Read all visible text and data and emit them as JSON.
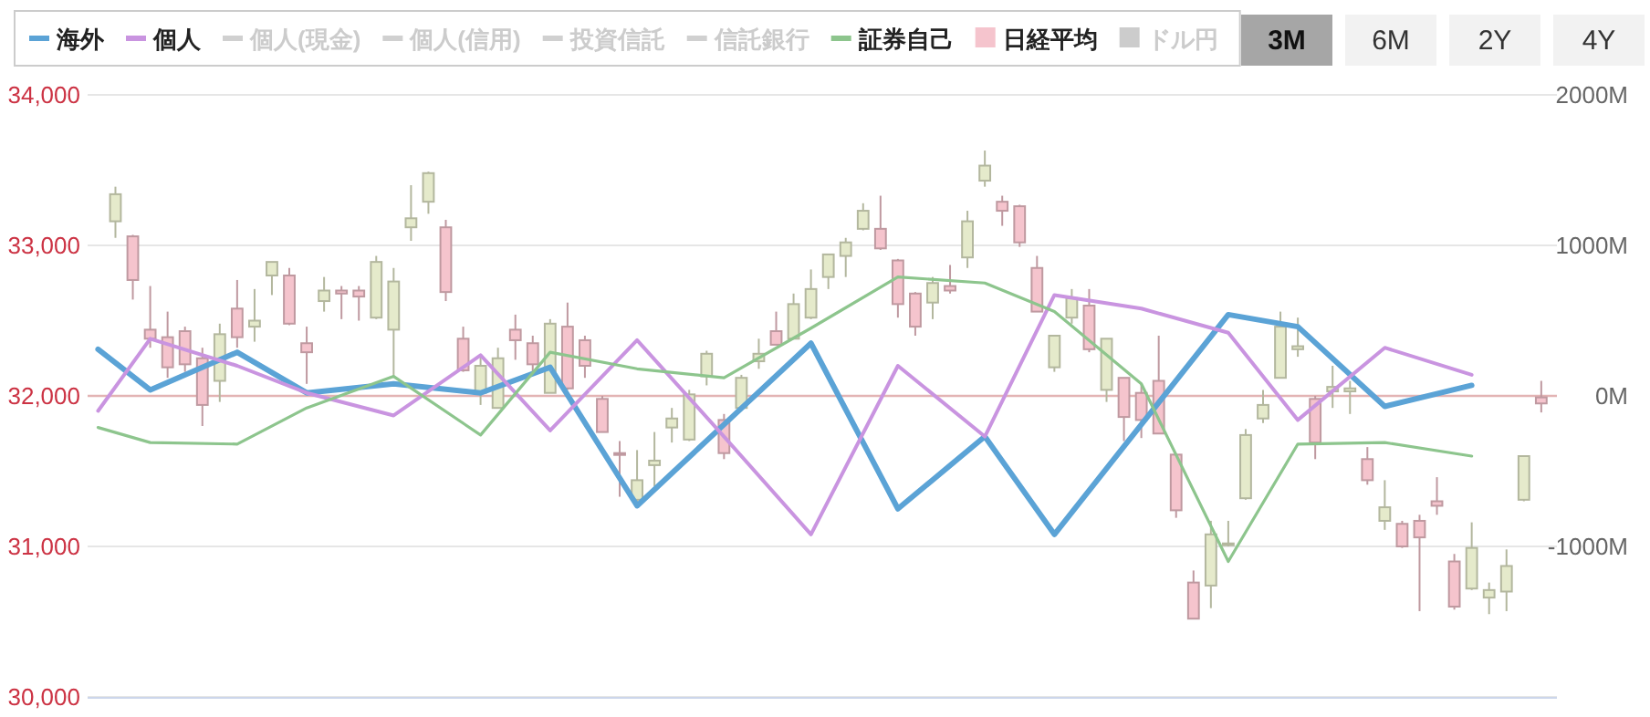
{
  "chart_data": {
    "type": "candlestick",
    "categories": [
      null,
      null,
      null,
      null,
      null,
      null,
      null,
      null,
      null,
      null,
      null,
      null,
      null,
      null,
      null,
      null,
      null,
      null,
      null,
      null,
      null,
      null,
      null,
      null,
      null,
      null,
      null,
      null,
      null,
      null,
      null,
      null,
      null,
      null,
      null,
      null,
      null,
      null,
      null,
      null,
      null,
      null,
      null,
      null,
      null,
      null,
      null,
      null,
      null,
      null,
      null,
      null,
      null,
      null,
      null,
      null,
      null,
      null,
      null,
      null,
      null,
      null,
      null,
      null,
      null,
      null,
      null,
      null,
      null,
      null,
      null,
      null,
      null,
      null,
      null,
      null,
      null,
      null,
      null,
      null,
      null,
      null,
      null,
      null
    ],
    "ylim": [
      30000,
      34000
    ],
    "yticks": [
      {
        "value": 30000,
        "label": "30,000"
      },
      {
        "value": 31000,
        "label": "31,000"
      },
      {
        "value": 32000,
        "label": "32,000"
      },
      {
        "value": 33000,
        "label": "33,000"
      },
      {
        "value": 34000,
        "label": "34,000"
      }
    ],
    "y2lim": [
      -2000,
      2000
    ],
    "y2ticks": [
      {
        "value": -1000,
        "label": "-1000M"
      },
      {
        "value": 0,
        "label": "0M"
      },
      {
        "value": 1000,
        "label": "1000M"
      },
      {
        "value": 2000,
        "label": "2000M"
      }
    ],
    "grid": "y",
    "legend": "top",
    "tick_labels": "y",
    "ref_lines": [
      {
        "axis": "y2",
        "value": 0,
        "color": "#e3b4b4"
      }
    ],
    "annotations": [
      "3M",
      "6M",
      "2Y",
      "4Y"
    ],
    "series": [
      {
        "name": "海外",
        "type": "line",
        "axis": "y2",
        "color": "#5ba3d6",
        "values": [
          310,
          null,
          null,
          40,
          null,
          null,
          null,
          null,
          290,
          null,
          null,
          null,
          20,
          null,
          null,
          null,
          null,
          80,
          null,
          null,
          null,
          null,
          20,
          null,
          null,
          null,
          190,
          null,
          null,
          null,
          null,
          -730,
          null,
          null,
          null,
          null,
          -190,
          null,
          null,
          null,
          null,
          350,
          null,
          null,
          null,
          null,
          -750,
          null,
          null,
          null,
          null,
          -270,
          null,
          null,
          null,
          -920,
          null,
          null,
          null,
          null,
          -190,
          null,
          null,
          null,
          null,
          540,
          null,
          null,
          null,
          460,
          null,
          null,
          null,
          null,
          -70,
          null,
          null,
          null,
          null,
          70,
          null,
          null,
          null,
          null
        ]
      },
      {
        "name": "個人",
        "type": "line",
        "axis": "y2",
        "color": "#c994e0",
        "values": [
          -100,
          null,
          null,
          380,
          null,
          null,
          null,
          null,
          200,
          null,
          null,
          null,
          20,
          null,
          null,
          null,
          null,
          -130,
          null,
          null,
          null,
          null,
          270,
          null,
          null,
          null,
          -230,
          null,
          null,
          null,
          null,
          370,
          null,
          null,
          null,
          null,
          -270,
          null,
          null,
          null,
          null,
          -920,
          null,
          null,
          null,
          null,
          200,
          null,
          null,
          null,
          null,
          -270,
          null,
          null,
          null,
          670,
          null,
          null,
          null,
          null,
          580,
          null,
          null,
          null,
          null,
          420,
          null,
          null,
          null,
          -160,
          null,
          null,
          null,
          null,
          320,
          null,
          null,
          null,
          null,
          140,
          null,
          null,
          null,
          null
        ]
      },
      {
        "name": "個人(現金)",
        "type": "line",
        "axis": "y2",
        "color": "#d0d0d0",
        "values": [
          null,
          null,
          null,
          null,
          null,
          null,
          null,
          null,
          null,
          null,
          null,
          null,
          null,
          null,
          null,
          null,
          null,
          null,
          null,
          null,
          null,
          null,
          null,
          null,
          null,
          null,
          null,
          null,
          null,
          null,
          null,
          null,
          null,
          null,
          null,
          null,
          null,
          null,
          null,
          null,
          null,
          null,
          null,
          null,
          null,
          null,
          null,
          null,
          null,
          null,
          null,
          null,
          null,
          null,
          null,
          null,
          null,
          null,
          null,
          null,
          null,
          null,
          null,
          null,
          null,
          null,
          null,
          null,
          null,
          null,
          null,
          null,
          null,
          null,
          null,
          null,
          null,
          null,
          null,
          null,
          null,
          null,
          null,
          null
        ]
      },
      {
        "name": "個人(信用)",
        "type": "line",
        "axis": "y2",
        "color": "#d0d0d0",
        "values": [
          null,
          null,
          null,
          null,
          null,
          null,
          null,
          null,
          null,
          null,
          null,
          null,
          null,
          null,
          null,
          null,
          null,
          null,
          null,
          null,
          null,
          null,
          null,
          null,
          null,
          null,
          null,
          null,
          null,
          null,
          null,
          null,
          null,
          null,
          null,
          null,
          null,
          null,
          null,
          null,
          null,
          null,
          null,
          null,
          null,
          null,
          null,
          null,
          null,
          null,
          null,
          null,
          null,
          null,
          null,
          null,
          null,
          null,
          null,
          null,
          null,
          null,
          null,
          null,
          null,
          null,
          null,
          null,
          null,
          null,
          null,
          null,
          null,
          null,
          null,
          null,
          null,
          null,
          null,
          null,
          null,
          null,
          null,
          null
        ]
      },
      {
        "name": "投資信託",
        "type": "line",
        "axis": "y2",
        "color": "#d0d0d0",
        "values": [
          null,
          null,
          null,
          null,
          null,
          null,
          null,
          null,
          null,
          null,
          null,
          null,
          null,
          null,
          null,
          null,
          null,
          null,
          null,
          null,
          null,
          null,
          null,
          null,
          null,
          null,
          null,
          null,
          null,
          null,
          null,
          null,
          null,
          null,
          null,
          null,
          null,
          null,
          null,
          null,
          null,
          null,
          null,
          null,
          null,
          null,
          null,
          null,
          null,
          null,
          null,
          null,
          null,
          null,
          null,
          null,
          null,
          null,
          null,
          null,
          null,
          null,
          null,
          null,
          null,
          null,
          null,
          null,
          null,
          null,
          null,
          null,
          null,
          null,
          null,
          null,
          null,
          null,
          null,
          null,
          null,
          null,
          null,
          null
        ]
      },
      {
        "name": "信託銀行",
        "type": "line",
        "axis": "y2",
        "color": "#d0d0d0",
        "values": [
          null,
          null,
          null,
          null,
          null,
          null,
          null,
          null,
          null,
          null,
          null,
          null,
          null,
          null,
          null,
          null,
          null,
          null,
          null,
          null,
          null,
          null,
          null,
          null,
          null,
          null,
          null,
          null,
          null,
          null,
          null,
          null,
          null,
          null,
          null,
          null,
          null,
          null,
          null,
          null,
          null,
          null,
          null,
          null,
          null,
          null,
          null,
          null,
          null,
          null,
          null,
          null,
          null,
          null,
          null,
          null,
          null,
          null,
          null,
          null,
          null,
          null,
          null,
          null,
          null,
          null,
          null,
          null,
          null,
          null,
          null,
          null,
          null,
          null,
          null,
          null,
          null,
          null,
          null,
          null,
          null,
          null,
          null,
          null
        ]
      },
      {
        "name": "証券自己",
        "type": "line",
        "axis": "y2",
        "color": "#8dc58d",
        "values": [
          -210,
          null,
          null,
          -310,
          null,
          null,
          null,
          null,
          -320,
          null,
          null,
          null,
          -80,
          null,
          null,
          null,
          null,
          130,
          null,
          null,
          null,
          null,
          -260,
          null,
          null,
          null,
          290,
          null,
          null,
          null,
          null,
          180,
          null,
          null,
          null,
          null,
          120,
          null,
          null,
          null,
          null,
          450,
          null,
          null,
          null,
          null,
          790,
          null,
          null,
          null,
          null,
          750,
          null,
          null,
          null,
          560,
          null,
          null,
          null,
          null,
          80,
          null,
          null,
          null,
          null,
          -1100,
          null,
          null,
          null,
          -320,
          null,
          null,
          null,
          null,
          -310,
          null,
          null,
          null,
          null,
          -400,
          null,
          null,
          null,
          null
        ]
      },
      {
        "name": "日経平均",
        "type": "candlestick",
        "color": "#f5c4cd",
        "ohlc": [
          null,
          [
            33160,
            33390,
            33050,
            33340
          ],
          [
            33060,
            33070,
            32640,
            32770
          ],
          [
            32440,
            32730,
            32320,
            32380
          ],
          [
            32390,
            32560,
            32120,
            32190
          ],
          [
            32430,
            32460,
            32160,
            32210
          ],
          [
            32250,
            32320,
            31800,
            31940
          ],
          [
            32100,
            32480,
            31960,
            32410
          ],
          [
            32580,
            32770,
            32320,
            32390
          ],
          [
            32460,
            32710,
            32360,
            32500
          ],
          [
            32800,
            32890,
            32670,
            32890
          ],
          [
            32800,
            32850,
            32470,
            32480
          ],
          [
            32350,
            32460,
            32080,
            32290
          ],
          [
            32630,
            32790,
            32560,
            32700
          ],
          [
            32700,
            32730,
            32510,
            32680
          ],
          [
            32700,
            32730,
            32500,
            32660
          ],
          [
            32520,
            32930,
            32510,
            32890
          ],
          [
            32440,
            32850,
            32120,
            32760
          ],
          [
            33120,
            33400,
            33030,
            33180
          ],
          [
            33290,
            33490,
            33210,
            33480
          ],
          [
            33120,
            33170,
            32630,
            32690
          ],
          [
            32380,
            32460,
            32160,
            32170
          ],
          [
            32020,
            32260,
            31940,
            32200
          ],
          [
            31920,
            32320,
            31920,
            32250
          ],
          [
            32440,
            32540,
            32240,
            32370
          ],
          [
            32350,
            32400,
            32160,
            32210
          ],
          [
            32020,
            32510,
            32020,
            32480
          ],
          [
            32460,
            32620,
            32040,
            32050
          ],
          [
            32370,
            32400,
            32120,
            32200
          ],
          [
            31980,
            32000,
            31760,
            31760
          ],
          [
            31620,
            31700,
            31330,
            31610
          ],
          [
            31310,
            31640,
            31290,
            31440
          ],
          [
            31540,
            31760,
            31400,
            31570
          ],
          [
            31790,
            31920,
            31690,
            31850
          ],
          [
            31710,
            32040,
            31700,
            32010
          ],
          [
            32130,
            32300,
            32070,
            32280
          ],
          [
            31840,
            31880,
            31580,
            31620
          ],
          [
            31920,
            32140,
            31920,
            32120
          ],
          [
            32230,
            32380,
            32180,
            32280
          ],
          [
            32430,
            32560,
            32340,
            32340
          ],
          [
            32380,
            32680,
            32380,
            32610
          ],
          [
            32520,
            32840,
            32510,
            32710
          ],
          [
            32790,
            32940,
            32710,
            32940
          ],
          [
            32930,
            33050,
            32790,
            33020
          ],
          [
            33110,
            33280,
            33100,
            33230
          ],
          [
            33110,
            33330,
            32970,
            32980
          ],
          [
            32900,
            32910,
            32520,
            32610
          ],
          [
            32680,
            32690,
            32400,
            32460
          ],
          [
            32620,
            32790,
            32510,
            32750
          ],
          [
            32730,
            32870,
            32680,
            32700
          ],
          [
            32920,
            33230,
            32850,
            33160
          ],
          [
            33430,
            33630,
            33390,
            33530
          ],
          [
            33290,
            33330,
            33130,
            33230
          ],
          [
            33260,
            33270,
            32990,
            33020
          ],
          [
            32850,
            32930,
            32560,
            32560
          ],
          [
            32190,
            32400,
            32160,
            32400
          ],
          [
            32520,
            32710,
            32480,
            32650
          ],
          [
            32600,
            32710,
            32290,
            32310
          ],
          [
            32040,
            32380,
            31960,
            32380
          ],
          [
            32120,
            32120,
            31700,
            31860
          ],
          [
            32020,
            32080,
            31720,
            31840
          ],
          [
            32100,
            32400,
            31750,
            31750
          ],
          [
            31610,
            31610,
            31190,
            31240
          ],
          [
            30760,
            30840,
            30520,
            30520
          ],
          [
            30740,
            31170,
            30590,
            31080
          ],
          [
            31010,
            31170,
            31000,
            31020
          ],
          [
            31320,
            31780,
            31310,
            31740
          ],
          [
            31850,
            32040,
            31820,
            31940
          ],
          [
            32120,
            32560,
            32120,
            32460
          ],
          [
            32310,
            32520,
            32260,
            32330
          ],
          [
            31980,
            32000,
            31580,
            31690
          ],
          [
            32030,
            32200,
            31920,
            32060
          ],
          [
            32030,
            32100,
            31880,
            32050
          ],
          [
            31580,
            31660,
            31410,
            31440
          ],
          [
            31170,
            31440,
            31110,
            31260
          ],
          [
            31150,
            31170,
            30990,
            31000
          ],
          [
            31170,
            31210,
            30570,
            31060
          ],
          [
            31300,
            31460,
            31210,
            31270
          ],
          [
            30900,
            30950,
            30580,
            30600
          ],
          [
            30720,
            31160,
            30710,
            30990
          ],
          [
            30660,
            30760,
            30550,
            30710
          ],
          [
            30700,
            30980,
            30570,
            30870
          ],
          [
            31310,
            31600,
            31300,
            31600
          ],
          [
            31990,
            32100,
            31890,
            31950
          ]
        ],
        "colors": [
          null,
          "#e5eacb",
          "#f5c4cd",
          "#f5c4cd",
          "#f5c4cd",
          "#f5c4cd",
          "#f5c4cd",
          "#e5eacb",
          "#f5c4cd",
          "#e5eacb",
          "#e5eacb",
          "#f5c4cd",
          "#f5c4cd",
          "#e5eacb",
          "#f5c4cd",
          "#f5c4cd",
          "#e5eacb",
          "#e5eacb",
          "#e5eacb",
          "#e5eacb",
          "#f5c4cd",
          "#f5c4cd",
          "#e5eacb",
          "#e5eacb",
          "#f5c4cd",
          "#f5c4cd",
          "#e5eacb",
          "#f5c4cd",
          "#f5c4cd",
          "#f5c4cd",
          "#f5c4cd",
          "#e5eacb",
          "#e5eacb",
          "#e5eacb",
          "#e5eacb",
          "#e5eacb",
          "#f5c4cd",
          "#e5eacb",
          "#e5eacb",
          "#f5c4cd",
          "#e5eacb",
          "#e5eacb",
          "#e5eacb",
          "#e5eacb",
          "#e5eacb",
          "#f5c4cd",
          "#f5c4cd",
          "#f5c4cd",
          "#e5eacb",
          "#f5c4cd",
          "#e5eacb",
          "#e5eacb",
          "#f5c4cd",
          "#f5c4cd",
          "#f5c4cd",
          "#e5eacb",
          "#e5eacb",
          "#f5c4cd",
          "#e5eacb",
          "#f5c4cd",
          "#f5c4cd",
          "#f5c4cd",
          "#f5c4cd",
          "#f5c4cd",
          "#e5eacb",
          "#e5eacb",
          "#e5eacb",
          "#e5eacb",
          "#e5eacb",
          "#e5eacb",
          "#f5c4cd",
          "#e5eacb",
          "#e5eacb",
          "#f5c4cd",
          "#e5eacb",
          "#f5c4cd",
          "#f5c4cd",
          "#f5c4cd",
          "#f5c4cd",
          "#e5eacb",
          "#e5eacb",
          "#e5eacb",
          "#e5eacb",
          "#f5c4cd"
        ]
      },
      {
        "name": "ドル円",
        "type": "bar",
        "color": "#cccccc",
        "values": [
          null,
          null,
          null,
          null,
          null,
          null,
          null,
          null,
          null,
          null,
          null,
          null,
          null,
          null,
          null,
          null,
          null,
          null,
          null,
          null,
          null,
          null,
          null,
          null,
          null,
          null,
          null,
          null,
          null,
          null,
          null,
          null,
          null,
          null,
          null,
          null,
          null,
          null,
          null,
          null,
          null,
          null,
          null,
          null,
          null,
          null,
          null,
          null,
          null,
          null,
          null,
          null,
          null,
          null,
          null,
          null,
          null,
          null,
          null,
          null,
          null,
          null,
          null,
          null,
          null,
          null,
          null,
          null,
          null,
          null,
          null,
          null,
          null,
          null,
          null,
          null,
          null,
          null,
          null,
          null,
          null,
          null,
          null,
          null
        ]
      }
    ]
  }
}
